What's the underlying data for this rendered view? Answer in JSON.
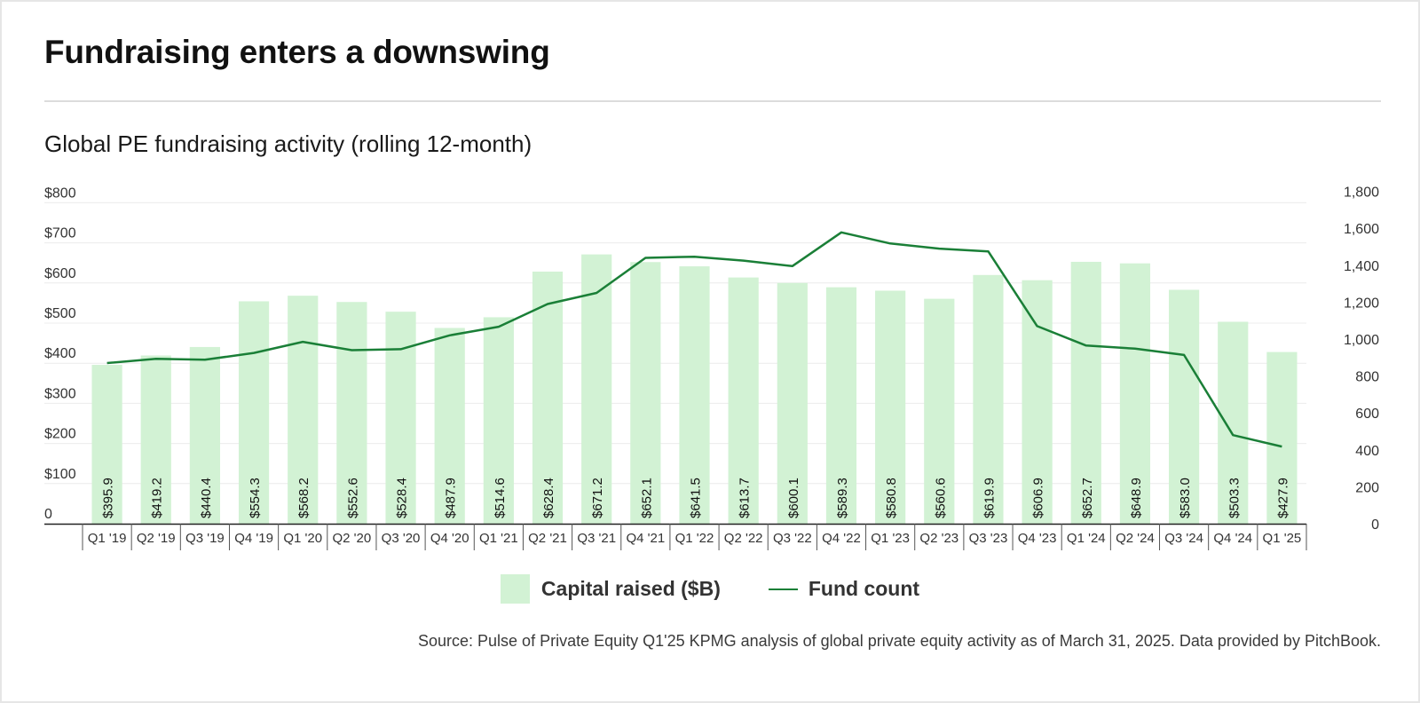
{
  "header": {
    "title": "Fundraising enters a downswing",
    "subtitle": "Global PE fundraising activity (rolling 12-month)"
  },
  "legend": {
    "bar_label": "Capital raised ($B)",
    "line_label": "Fund count"
  },
  "source": "Source: Pulse of Private Equity Q1'25 KPMG analysis of global private equity activity as of March 31, 2025. Data provided by PitchBook.",
  "colors": {
    "bar": "#d2f2d4",
    "line": "#1a7f37",
    "axis": "#222222",
    "grid": "#ececec",
    "text": "#333333"
  },
  "chart_data": {
    "type": "bar",
    "categories": [
      "Q1 '19",
      "Q2 '19",
      "Q3 '19",
      "Q4 '19",
      "Q1 '20",
      "Q2 '20",
      "Q3 '20",
      "Q4 '20",
      "Q1 '21",
      "Q2 '21",
      "Q3 '21",
      "Q4 '21",
      "Q1 '22",
      "Q2 '22",
      "Q3 '22",
      "Q4 '22",
      "Q1 '23",
      "Q2 '23",
      "Q3 '23",
      "Q4 '23",
      "Q1 '24",
      "Q2 '24",
      "Q3 '24",
      "Q4 '24",
      "Q1 '25"
    ],
    "series": [
      {
        "name": "Capital raised ($B)",
        "type": "bar",
        "axis": "left",
        "values": [
          395.9,
          419.2,
          440.4,
          554.3,
          568.2,
          552.6,
          528.4,
          487.9,
          514.6,
          628.4,
          671.2,
          652.1,
          641.5,
          613.7,
          600.1,
          589.3,
          580.8,
          560.6,
          619.9,
          606.9,
          652.7,
          648.9,
          583.0,
          503.3,
          427.9
        ],
        "labels": [
          "$395.9",
          "$419.2",
          "$440.4",
          "$554.3",
          "$568.2",
          "$552.6",
          "$528.4",
          "$487.9",
          "$514.6",
          "$628.4",
          "$671.2",
          "$652.1",
          "$641.5",
          "$613.7",
          "$600.1",
          "$589.3",
          "$580.8",
          "$560.6",
          "$619.9",
          "$606.9",
          "$652.7",
          "$648.9",
          "$583.0",
          "$503.3",
          "$427.9"
        ]
      },
      {
        "name": "Fund count",
        "type": "line",
        "axis": "right",
        "values": [
          870,
          893,
          888,
          925,
          985,
          940,
          945,
          1020,
          1067,
          1190,
          1250,
          1440,
          1446,
          1425,
          1395,
          1578,
          1518,
          1490,
          1475,
          1070,
          965,
          948,
          914,
          480,
          418
        ]
      }
    ],
    "y_left": {
      "ylim": [
        0,
        800
      ],
      "ticks": [
        0,
        100,
        200,
        300,
        400,
        500,
        600,
        700,
        800
      ],
      "tick_labels": [
        "0",
        "$100",
        "$200",
        "$300",
        "$400",
        "$500",
        "$600",
        "$700",
        "$800"
      ]
    },
    "y_right": {
      "ylim": [
        0,
        1800
      ],
      "ticks": [
        0,
        200,
        400,
        600,
        800,
        1000,
        1200,
        1400,
        1600,
        1800
      ],
      "tick_labels": [
        "0",
        "200",
        "400",
        "600",
        "800",
        "1,000",
        "1,200",
        "1,400",
        "1,600",
        "1,800"
      ]
    },
    "grid": true,
    "legend_position": "bottom-center"
  }
}
